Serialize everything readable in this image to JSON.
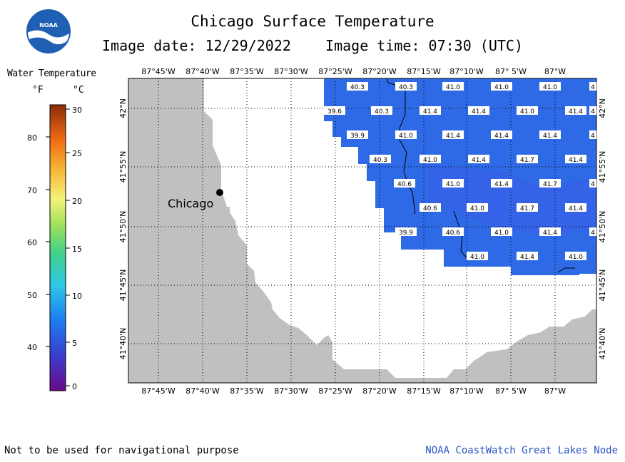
{
  "header": {
    "title": "Chicago Surface Temperature",
    "subtitle": "Image date: 12/29/2022    Image time: 07:30 (UTC)",
    "logo_text": "NOAA"
  },
  "legend": {
    "title": "Water Temperature",
    "unit_f": "°F",
    "unit_c": "°C",
    "f_ticks": [
      "80",
      "70",
      "60",
      "50",
      "40"
    ],
    "c_ticks": [
      "30",
      "25",
      "20",
      "15",
      "10",
      "5",
      "0"
    ]
  },
  "map": {
    "lon_labels": [
      "87°45'W",
      "87°40'W",
      "87°35'W",
      "87°30'W",
      "87°25'W",
      "87°20'W",
      "87°15'W",
      "87°10'W",
      "87° 5'W",
      "87°W"
    ],
    "lat_labels": [
      "42°N",
      "41°55'N",
      "41°50'N",
      "41°45'N",
      "41°40'N"
    ],
    "city_label": "Chicago",
    "colors": {
      "land": "#c0c0c0",
      "water_no_data": "#ffffff",
      "water_warm": "#2f6be0",
      "water_cool": "#3a5fe8"
    },
    "temperature_labels": [
      [
        "40.3",
        "40.3",
        "41.0",
        "41.0",
        "41.0",
        "4"
      ],
      [
        "39.6",
        "40.3",
        "41.4",
        "41.4",
        "41.0",
        "41.4",
        "4"
      ],
      [
        "39.9",
        "41.0",
        "41.4",
        "41.4",
        "41.4",
        "4"
      ],
      [
        "40.3",
        "41.0",
        "41.4",
        "41.7",
        "41.4"
      ],
      [
        "40.6",
        "41.0",
        "41.4",
        "41.7",
        "4"
      ],
      [
        "40.6",
        "41.0",
        "41.7",
        "41.4"
      ],
      [
        "39.9",
        "40.6",
        "41.0",
        "41.4",
        "4"
      ],
      [
        "41.0",
        "41.4",
        "41.0"
      ]
    ]
  },
  "footer": {
    "disclaimer": "Not to be used for navigational purpose",
    "credit": "NOAA CoastWatch Great Lakes Node"
  }
}
